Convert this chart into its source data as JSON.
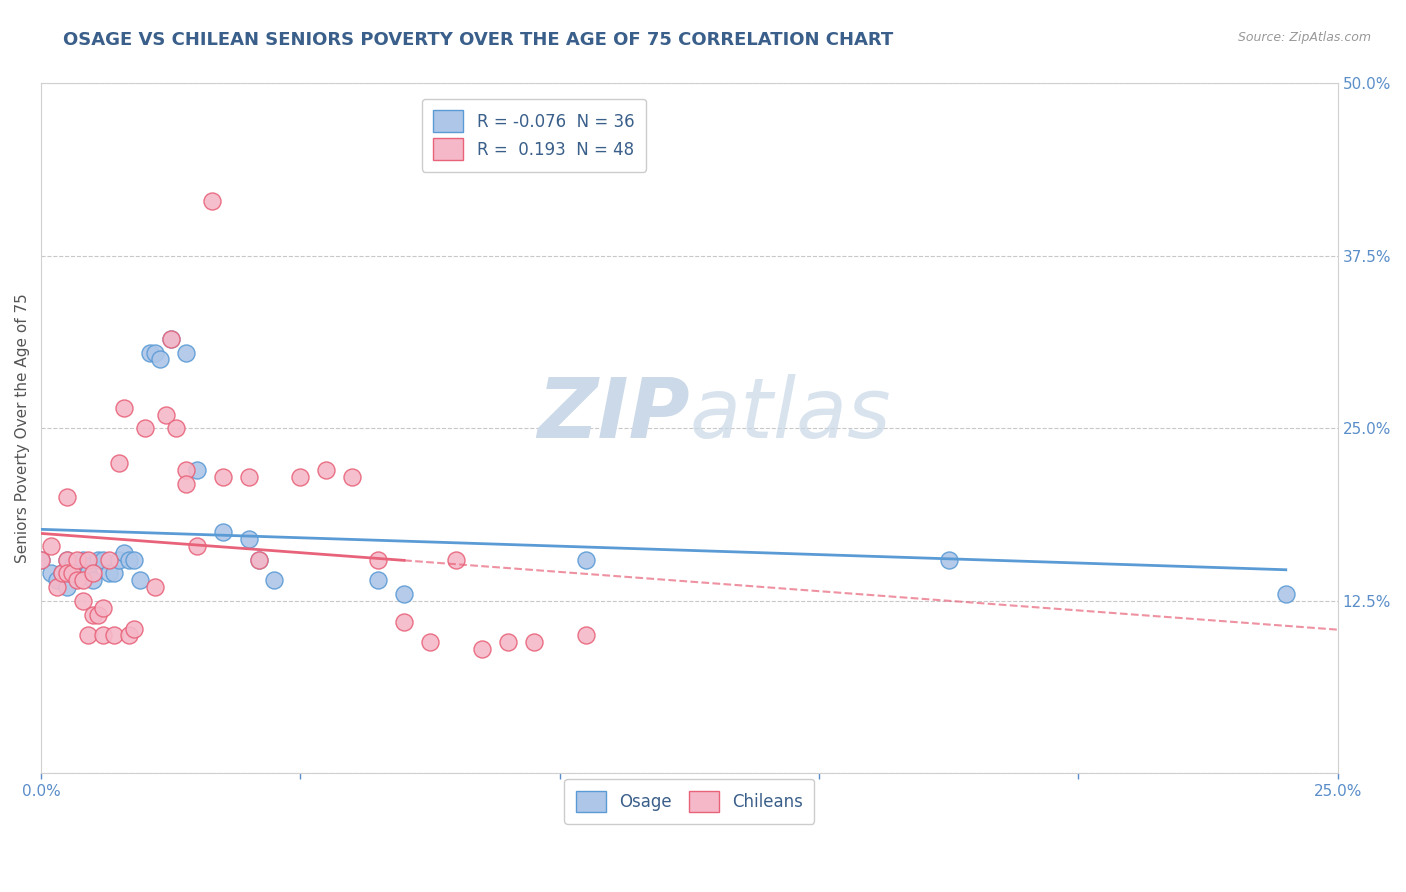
{
  "title": "OSAGE VS CHILEAN SENIORS POVERTY OVER THE AGE OF 75 CORRELATION CHART",
  "source": "Source: ZipAtlas.com",
  "ylabel": "Seniors Poverty Over the Age of 75",
  "xlim": [
    0.0,
    0.25
  ],
  "ylim": [
    0.0,
    0.5
  ],
  "xticks": [
    0.0,
    0.05,
    0.1,
    0.15,
    0.2,
    0.25
  ],
  "xtick_labels": [
    "0.0%",
    "",
    "",
    "",
    "",
    "25.0%"
  ],
  "ytick_labels_right": [
    "50.0%",
    "37.5%",
    "25.0%",
    "12.5%",
    ""
  ],
  "yticks_right": [
    0.5,
    0.375,
    0.25,
    0.125,
    0.0
  ],
  "legend_r_osage": "-0.076",
  "legend_n_osage": "36",
  "legend_r_chilean": "0.193",
  "legend_n_chilean": "48",
  "osage_color": "#aec6e8",
  "chilean_color": "#f5b8c8",
  "osage_line_color": "#5b9bd5",
  "chilean_line_color": "#e8637a",
  "background_color": "#ffffff",
  "watermark_color": "#ccd9e8",
  "osage_points": [
    [
      0.0,
      0.155
    ],
    [
      0.002,
      0.145
    ],
    [
      0.003,
      0.14
    ],
    [
      0.004,
      0.145
    ],
    [
      0.005,
      0.155
    ],
    [
      0.005,
      0.135
    ],
    [
      0.006,
      0.15
    ],
    [
      0.007,
      0.145
    ],
    [
      0.008,
      0.155
    ],
    [
      0.009,
      0.15
    ],
    [
      0.009,
      0.145
    ],
    [
      0.01,
      0.14
    ],
    [
      0.011,
      0.155
    ],
    [
      0.012,
      0.155
    ],
    [
      0.013,
      0.145
    ],
    [
      0.014,
      0.145
    ],
    [
      0.015,
      0.155
    ],
    [
      0.016,
      0.16
    ],
    [
      0.017,
      0.155
    ],
    [
      0.018,
      0.155
    ],
    [
      0.019,
      0.14
    ],
    [
      0.021,
      0.305
    ],
    [
      0.022,
      0.305
    ],
    [
      0.023,
      0.3
    ],
    [
      0.025,
      0.315
    ],
    [
      0.028,
      0.305
    ],
    [
      0.03,
      0.22
    ],
    [
      0.035,
      0.175
    ],
    [
      0.04,
      0.17
    ],
    [
      0.042,
      0.155
    ],
    [
      0.045,
      0.14
    ],
    [
      0.065,
      0.14
    ],
    [
      0.07,
      0.13
    ],
    [
      0.105,
      0.155
    ],
    [
      0.175,
      0.155
    ],
    [
      0.24,
      0.13
    ]
  ],
  "chilean_points": [
    [
      0.0,
      0.155
    ],
    [
      0.002,
      0.165
    ],
    [
      0.003,
      0.135
    ],
    [
      0.004,
      0.145
    ],
    [
      0.005,
      0.2
    ],
    [
      0.005,
      0.155
    ],
    [
      0.005,
      0.145
    ],
    [
      0.006,
      0.145
    ],
    [
      0.007,
      0.14
    ],
    [
      0.007,
      0.155
    ],
    [
      0.008,
      0.125
    ],
    [
      0.008,
      0.14
    ],
    [
      0.009,
      0.1
    ],
    [
      0.009,
      0.155
    ],
    [
      0.01,
      0.145
    ],
    [
      0.01,
      0.115
    ],
    [
      0.011,
      0.115
    ],
    [
      0.012,
      0.1
    ],
    [
      0.012,
      0.12
    ],
    [
      0.013,
      0.155
    ],
    [
      0.014,
      0.1
    ],
    [
      0.015,
      0.225
    ],
    [
      0.016,
      0.265
    ],
    [
      0.017,
      0.1
    ],
    [
      0.018,
      0.105
    ],
    [
      0.02,
      0.25
    ],
    [
      0.022,
      0.135
    ],
    [
      0.024,
      0.26
    ],
    [
      0.025,
      0.315
    ],
    [
      0.026,
      0.25
    ],
    [
      0.028,
      0.22
    ],
    [
      0.028,
      0.21
    ],
    [
      0.03,
      0.165
    ],
    [
      0.033,
      0.415
    ],
    [
      0.035,
      0.215
    ],
    [
      0.04,
      0.215
    ],
    [
      0.042,
      0.155
    ],
    [
      0.05,
      0.215
    ],
    [
      0.055,
      0.22
    ],
    [
      0.06,
      0.215
    ],
    [
      0.065,
      0.155
    ],
    [
      0.07,
      0.11
    ],
    [
      0.075,
      0.095
    ],
    [
      0.08,
      0.155
    ],
    [
      0.085,
      0.09
    ],
    [
      0.09,
      0.095
    ],
    [
      0.095,
      0.095
    ],
    [
      0.105,
      0.1
    ]
  ],
  "title_fontsize": 13,
  "axis_label_fontsize": 11,
  "tick_fontsize": 11,
  "legend_fontsize": 12
}
